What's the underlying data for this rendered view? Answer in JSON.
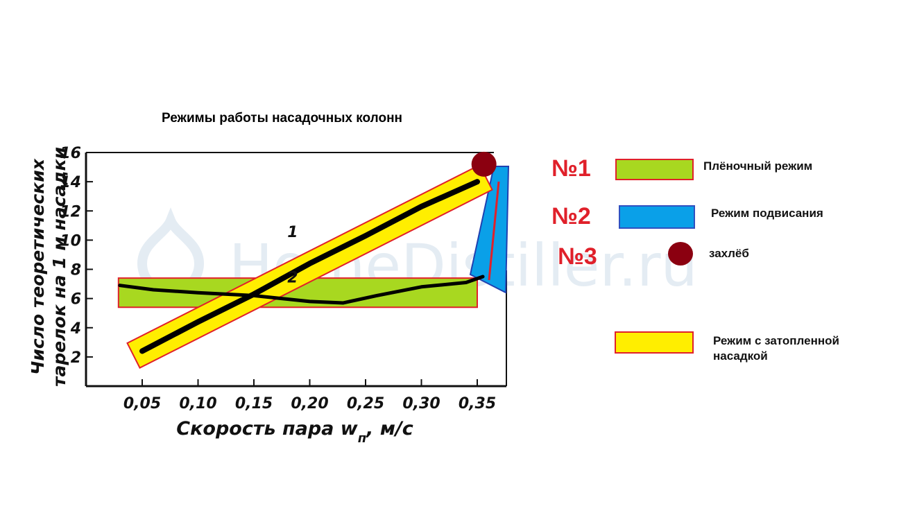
{
  "chart_data": {
    "type": "line",
    "title": "Режимы работы насадочных колонн",
    "xlabel": "Скорость пара w",
    "xlabel_sub": "п",
    "xlabel_unit": ", м/с",
    "ylabel_line1": "Число теоретических",
    "ylabel_line2": "тарелок на 1 м насадки",
    "xlim": [
      0.0,
      0.37
    ],
    "ylim": [
      0,
      16
    ],
    "x_ticks": [
      0.05,
      0.1,
      0.15,
      0.2,
      0.25,
      0.3,
      0.35
    ],
    "x_tick_labels": [
      "0,05",
      "0,10",
      "0,15",
      "0,20",
      "0,25",
      "0,30",
      "0,35"
    ],
    "y_ticks": [
      2,
      4,
      6,
      8,
      10,
      12,
      14,
      16
    ],
    "y_tick_labels": [
      "2",
      "4",
      "6",
      "8",
      "10",
      "12",
      "14",
      "16"
    ],
    "series": [
      {
        "name": "1",
        "x": [
          0.05,
          0.1,
          0.15,
          0.2,
          0.25,
          0.3,
          0.35
        ],
        "y": [
          2.4,
          4.4,
          6.3,
          8.4,
          10.3,
          12.3,
          14.0
        ]
      },
      {
        "name": "2",
        "x": [
          0.03,
          0.06,
          0.1,
          0.15,
          0.2,
          0.23,
          0.26,
          0.3,
          0.34,
          0.355
        ],
        "y": [
          6.9,
          6.6,
          6.4,
          6.2,
          5.8,
          5.7,
          6.2,
          6.8,
          7.1,
          7.5
        ]
      }
    ],
    "regions": [
      {
        "id": "film",
        "x": [
          0.03,
          0.35
        ],
        "y": [
          5.4,
          7.4
        ]
      }
    ],
    "flood_point": {
      "x": 0.356,
      "y": 15.2
    }
  },
  "watermark": "HomeDistiller.ru",
  "legend": [
    {
      "num": "№1",
      "label": "Плёночный режим",
      "color": "#a8d820"
    },
    {
      "num": "№2",
      "label": "Режим подвисания",
      "color": "#0aa0e8"
    },
    {
      "num": "№3",
      "label": "захлёб",
      "color": "#8b0010"
    },
    {
      "num": "",
      "label": "Режим с затопленной",
      "label2": "насадкой",
      "color": "#ffee00"
    }
  ],
  "colors": {
    "accent_red": "#e0202a",
    "band_yellow": "#ffee00",
    "band_green": "#a8d820",
    "band_blue": "#0aa0e8",
    "flood": "#8b0010"
  }
}
